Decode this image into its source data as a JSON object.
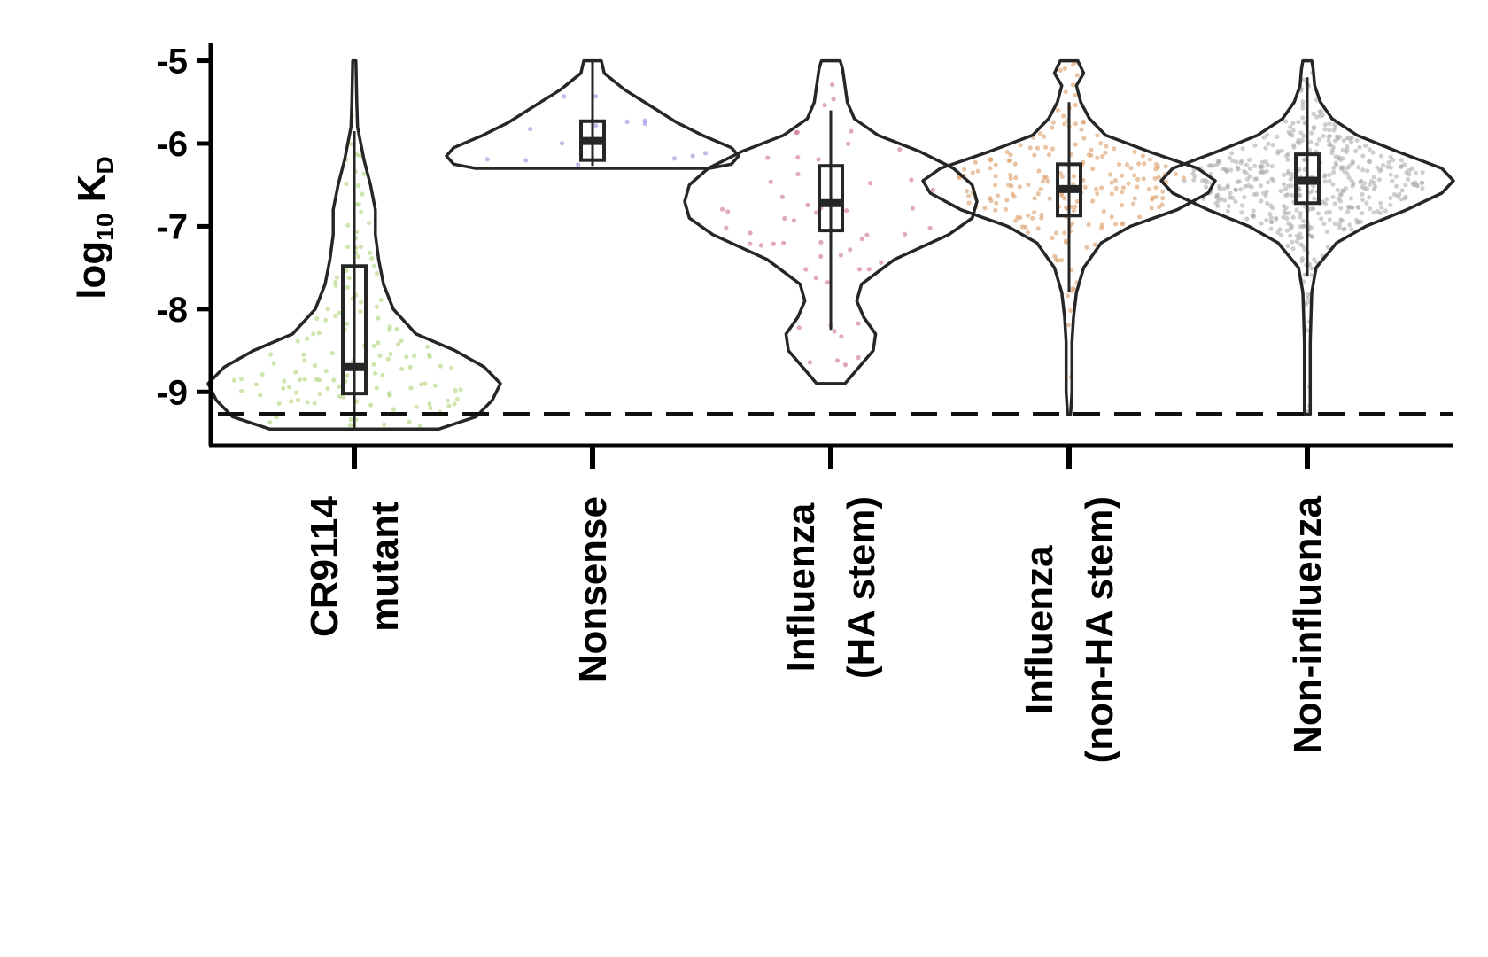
{
  "chart_data": {
    "type": "violin",
    "ylabel": {
      "main": "log",
      "sub1": "10",
      "mid": " K",
      "sub2": "D"
    },
    "ylim": [
      -9.65,
      -4.78
    ],
    "yticks": [
      -5,
      -6,
      -7,
      -8,
      -9
    ],
    "ytick_labels": [
      "-5",
      "-6",
      "-7",
      "-8",
      "-9"
    ],
    "reference_line": {
      "y": -9.27,
      "style": "dashed"
    },
    "grid": false,
    "legend": "none",
    "categories": [
      {
        "lines": [
          "CR9114",
          "mutant"
        ]
      },
      {
        "lines": [
          "Nonsense"
        ]
      },
      {
        "lines": [
          "Influenza",
          "(HA stem)"
        ]
      },
      {
        "lines": [
          "Influenza",
          "(non-HA stem)"
        ]
      },
      {
        "lines": [
          "Non-influenza"
        ]
      }
    ],
    "series": [
      {
        "color": "#a6d26b",
        "n_points": 140,
        "violin_range": [
          -9.45,
          -5.0
        ],
        "density": [
          [
            -9.45,
            0.52
          ],
          [
            -9.3,
            0.75
          ],
          [
            -9.1,
            0.85
          ],
          [
            -8.9,
            0.9
          ],
          [
            -8.7,
            0.8
          ],
          [
            -8.5,
            0.62
          ],
          [
            -8.3,
            0.38
          ],
          [
            -8.0,
            0.24
          ],
          [
            -7.7,
            0.18
          ],
          [
            -7.4,
            0.15
          ],
          [
            -7.1,
            0.13
          ],
          [
            -6.8,
            0.13
          ],
          [
            -6.5,
            0.1
          ],
          [
            -6.2,
            0.06
          ],
          [
            -5.8,
            0.02
          ],
          [
            -5.5,
            0.015
          ],
          [
            -5.0,
            0.01
          ]
        ],
        "box": {
          "q1": -9.02,
          "median": -8.7,
          "q3": -7.48,
          "whisker_low": -9.45,
          "whisker_high": -5.85
        }
      },
      {
        "color": "#8a86d8",
        "n_points": 14,
        "violin_range": [
          -6.3,
          -5.0
        ],
        "density": [
          [
            -6.3,
            0.8
          ],
          [
            -6.25,
            0.95
          ],
          [
            -6.15,
            1.0
          ],
          [
            -6.05,
            0.95
          ],
          [
            -5.9,
            0.75
          ],
          [
            -5.75,
            0.58
          ],
          [
            -5.55,
            0.4
          ],
          [
            -5.35,
            0.22
          ],
          [
            -5.15,
            0.08
          ],
          [
            -5.0,
            0.06
          ]
        ],
        "box": {
          "q1": -6.2,
          "median": -5.97,
          "q3": -5.73,
          "whisker_low": -6.27,
          "whisker_high": -5.0
        }
      },
      {
        "color": "#c9608b",
        "n_points": 55,
        "violin_range": [
          -8.9,
          -5.0
        ],
        "density": [
          [
            -8.9,
            0.06
          ],
          [
            -8.7,
            0.12
          ],
          [
            -8.5,
            0.18
          ],
          [
            -8.3,
            0.19
          ],
          [
            -8.1,
            0.14
          ],
          [
            -7.9,
            0.11
          ],
          [
            -7.7,
            0.13
          ],
          [
            -7.4,
            0.27
          ],
          [
            -7.1,
            0.5
          ],
          [
            -6.9,
            0.6
          ],
          [
            -6.7,
            0.62
          ],
          [
            -6.5,
            0.6
          ],
          [
            -6.3,
            0.52
          ],
          [
            -6.1,
            0.38
          ],
          [
            -5.9,
            0.2
          ],
          [
            -5.7,
            0.1
          ],
          [
            -5.5,
            0.07
          ],
          [
            -5.3,
            0.06
          ],
          [
            -5.1,
            0.05
          ],
          [
            -5.0,
            0.04
          ]
        ],
        "box": {
          "q1": -7.05,
          "median": -6.72,
          "q3": -6.27,
          "whisker_low": -8.25,
          "whisker_high": -5.6
        }
      },
      {
        "color": "#d8955b",
        "n_points": 210,
        "violin_range": [
          -9.27,
          -5.0
        ],
        "density": [
          [
            -9.27,
            0.01
          ],
          [
            -9.0,
            0.02
          ],
          [
            -8.7,
            0.02
          ],
          [
            -8.4,
            0.02
          ],
          [
            -8.1,
            0.03
          ],
          [
            -7.8,
            0.05
          ],
          [
            -7.5,
            0.1
          ],
          [
            -7.2,
            0.22
          ],
          [
            -7.0,
            0.42
          ],
          [
            -6.8,
            0.74
          ],
          [
            -6.6,
            0.95
          ],
          [
            -6.45,
            1.0
          ],
          [
            -6.3,
            0.88
          ],
          [
            -6.1,
            0.55
          ],
          [
            -5.9,
            0.25
          ],
          [
            -5.7,
            0.14
          ],
          [
            -5.5,
            0.08
          ],
          [
            -5.3,
            0.05
          ],
          [
            -5.15,
            0.1
          ],
          [
            -5.0,
            0.06
          ]
        ],
        "box": {
          "q1": -6.87,
          "median": -6.55,
          "q3": -6.25,
          "whisker_low": -7.8,
          "whisker_high": -5.5
        }
      },
      {
        "color": "#a8a8a8",
        "n_points": 480,
        "violin_range": [
          -9.27,
          -5.0
        ],
        "density": [
          [
            -9.27,
            0.02
          ],
          [
            -9.0,
            0.02
          ],
          [
            -8.7,
            0.02
          ],
          [
            -8.4,
            0.02
          ],
          [
            -8.1,
            0.025
          ],
          [
            -7.8,
            0.03
          ],
          [
            -7.5,
            0.06
          ],
          [
            -7.2,
            0.2
          ],
          [
            -7.0,
            0.4
          ],
          [
            -6.8,
            0.68
          ],
          [
            -6.6,
            0.92
          ],
          [
            -6.45,
            1.0
          ],
          [
            -6.3,
            0.92
          ],
          [
            -6.1,
            0.62
          ],
          [
            -5.9,
            0.34
          ],
          [
            -5.7,
            0.17
          ],
          [
            -5.5,
            0.09
          ],
          [
            -5.3,
            0.05
          ],
          [
            -5.1,
            0.04
          ],
          [
            -5.0,
            0.03
          ]
        ],
        "box": {
          "q1": -6.72,
          "median": -6.45,
          "q3": -6.13,
          "whisker_low": -7.6,
          "whisker_high": -5.2
        }
      }
    ]
  }
}
